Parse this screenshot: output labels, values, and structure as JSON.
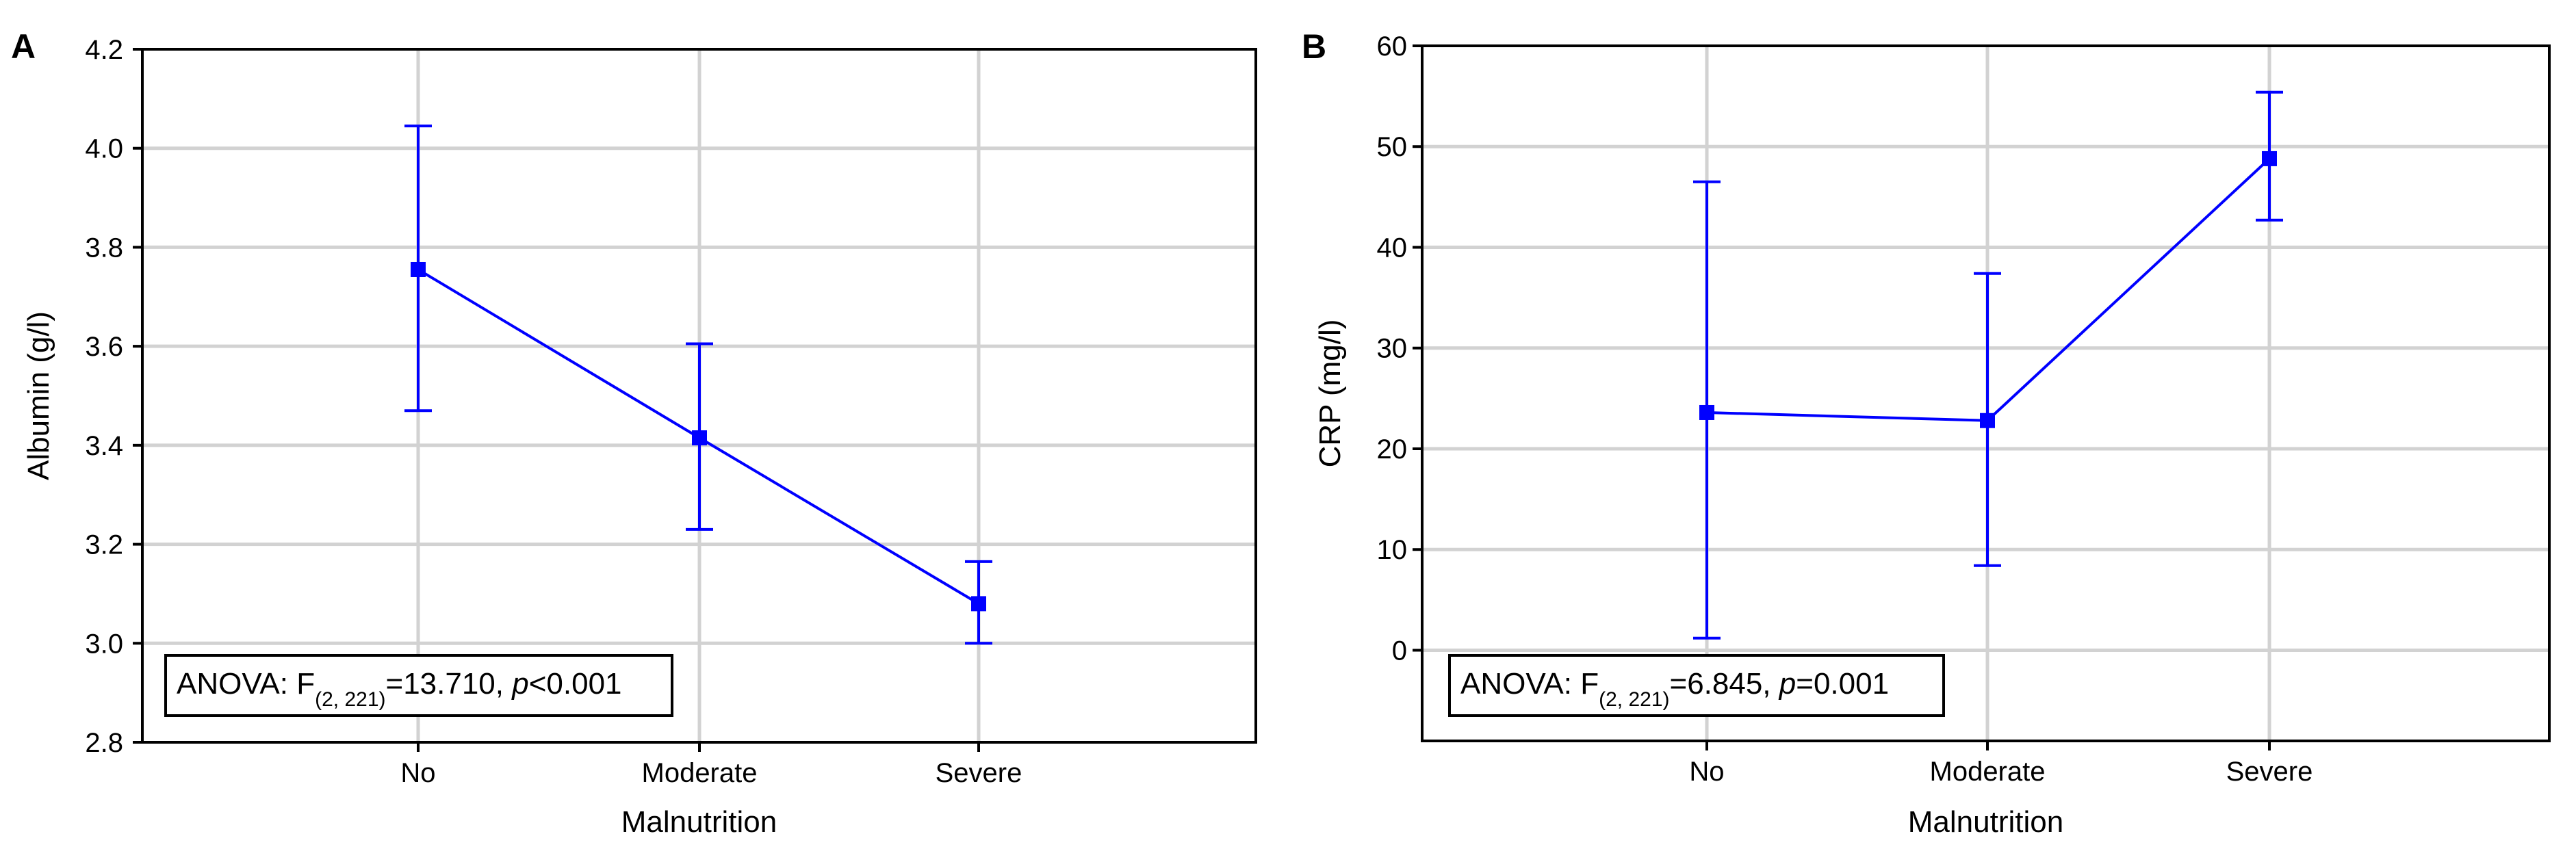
{
  "chart_data": [
    {
      "panel": "A",
      "type": "line",
      "xlabel": "Malnutrition",
      "ylabel": "Albumin (g/l)",
      "categories": [
        "No",
        "Moderate",
        "Severe"
      ],
      "yticks": [
        "2.8",
        "3.0",
        "3.2",
        "3.4",
        "3.6",
        "3.8",
        "4.0",
        "4.2"
      ],
      "ylim": [
        2.8,
        4.2
      ],
      "grid": true,
      "series": [
        {
          "name": "Albumin",
          "color": "#0000ff",
          "values": [
            3.755,
            3.415,
            3.08
          ],
          "lower": [
            3.47,
            3.23,
            3.0
          ],
          "upper": [
            4.045,
            3.605,
            3.165
          ]
        }
      ],
      "annotation": {
        "prefix": "ANOVA: F",
        "subscript": "(2, 221)",
        "stat": "=13.710, ",
        "p_label": "p",
        "p_value": "<0.001"
      }
    },
    {
      "panel": "B",
      "type": "line",
      "xlabel": "Malnutrition",
      "ylabel": "CRP (mg/l)",
      "categories": [
        "No",
        "Moderate",
        "Severe"
      ],
      "yticks": [
        "0",
        "10",
        "20",
        "30",
        "40",
        "50",
        "60"
      ],
      "ylim": [
        -9,
        60
      ],
      "grid": true,
      "series": [
        {
          "name": "CRP",
          "color": "#0000ff",
          "values": [
            23.6,
            22.8,
            48.8
          ],
          "lower": [
            1.2,
            8.4,
            42.7
          ],
          "upper": [
            46.5,
            37.4,
            55.4
          ]
        }
      ],
      "annotation": {
        "prefix": "ANOVA: F",
        "subscript": "(2, 221)",
        "stat": "=6.845, ",
        "p_label": "p",
        "p_value": "=0.001"
      }
    }
  ]
}
